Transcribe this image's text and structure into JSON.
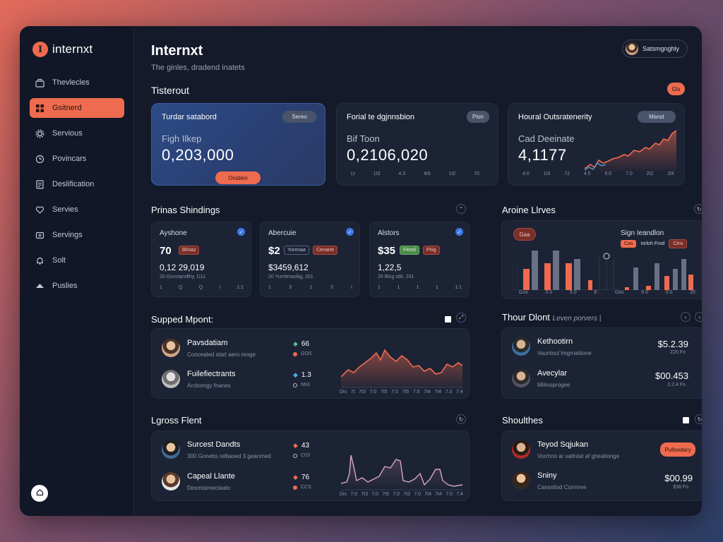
{
  "app": {
    "logo_mark": "I",
    "logo_text": "internxt",
    "title": "Internxt",
    "subtitle": "The ginles, dradend inatets",
    "user_name": "Satsmgnghly"
  },
  "sidebar": {
    "items": [
      {
        "label": "Thevlecles",
        "icon": "briefcase-icon",
        "active": false
      },
      {
        "label": "Gsitnerd",
        "icon": "grid-icon",
        "active": true
      },
      {
        "label": "Servious",
        "icon": "gear-icon",
        "active": false
      },
      {
        "label": "Povincars",
        "icon": "clock-icon",
        "active": false
      },
      {
        "label": "Deslification",
        "icon": "document-icon",
        "active": false
      },
      {
        "label": "Servies",
        "icon": "heart-icon",
        "active": false
      },
      {
        "label": "Servings",
        "icon": "box-icon",
        "active": false
      },
      {
        "label": "Solt",
        "icon": "bell-icon",
        "active": false
      },
      {
        "label": "Puslies",
        "icon": "cloud-icon",
        "active": false
      }
    ]
  },
  "overview": {
    "title": "Tisterout",
    "badge": "Gls",
    "cards": [
      {
        "label": "Turdar satabord",
        "chip": "Sereo",
        "sub": "Figh Ilkep",
        "value": "0,203,000",
        "button": "Onidien"
      },
      {
        "label": "Forial te dgjnnsbion",
        "chip": "Pion",
        "sub": "Bif Toon",
        "value": "0,2106,020",
        "axis": [
          "Lt",
          "1t3",
          "4.3",
          "4t5",
          "1t2",
          "70"
        ]
      },
      {
        "label": "Houral Outsratenerity",
        "chip": "Manst",
        "sub": "Cad Deeinate",
        "value": "4,1177",
        "axis": [
          "4:0",
          "1t3",
          "72",
          "4.5",
          "6.0",
          "7.0",
          "2t2",
          "2t4"
        ]
      }
    ]
  },
  "standings": {
    "title": "Prinas Shindings",
    "cards": [
      {
        "label": "Ayshone",
        "value": "70",
        "badges": [
          {
            "text": "Blmaz",
            "kind": "red"
          }
        ],
        "number": "0,12 29,019",
        "note": "20   Gonstandthy,  D11",
        "axis": [
          "1",
          "Q",
          "Q",
          "I",
          "1:1"
        ]
      },
      {
        "label": "Abercuie",
        "value": "$2",
        "badges": [
          {
            "text": "Yorenaa",
            "kind": "outline"
          },
          {
            "text": "Cenaret",
            "kind": "red"
          }
        ],
        "number": "$3459,612",
        "note": "20   Yurrtenasliig,  201",
        "axis": [
          "1",
          "3",
          "1",
          "3",
          "I"
        ]
      },
      {
        "label": "Alstors",
        "value": "$35",
        "badges": [
          {
            "text": "Fitred",
            "kind": "green"
          },
          {
            "text": "Fhig",
            "kind": "red"
          }
        ],
        "number": "1,22,5",
        "note": "26   Blsg stlit,  201",
        "axis": [
          "1",
          "1",
          "1",
          "1",
          "1:1"
        ]
      }
    ]
  },
  "active_lines": {
    "title": "Aroine Llrves",
    "pill": "Gaa",
    "legend_title": "Sign Ieandlon",
    "legend_items": [
      "Cas",
      "Iorloh Frod",
      "Cins"
    ],
    "axis": [
      "Gus",
      "0.0",
      "5.0",
      "E",
      "Gas",
      "6.0",
      "0.0",
      "26"
    ]
  },
  "supported": {
    "title": "Supped Mpont:",
    "people": [
      {
        "name": "Pavsdatiam",
        "desc": "Concealed start aero reoge",
        "stat": "66",
        "stat_sub": "GOS"
      },
      {
        "name": "Fuilefiectrants",
        "desc": "Arckomgy fnanes",
        "stat": "1.3",
        "stat_sub": "N93"
      }
    ],
    "axis": [
      "Dis",
      "7t",
      "7t3",
      "7:0",
      "7t5",
      "7:0",
      "7t5",
      "7:0",
      "7t4",
      "7t4",
      "7.0",
      "7:4"
    ]
  },
  "thour": {
    "title": "Thour Dlont",
    "subtitle": "Leven porvers |",
    "people": [
      {
        "name": "Kethootirn",
        "desc": "Vauntoul lmgrnaitione",
        "amount": "$5.2.39",
        "amount_sub": "Z20 Fo"
      },
      {
        "name": "Avecylar",
        "desc": "Milmoprogee",
        "amount": "$00.453",
        "amount_sub": "2.2.4 Fo"
      }
    ]
  },
  "lgross": {
    "title": "Lgross Flent",
    "people": [
      {
        "name": "Surcest Dandts",
        "desc": "300 Gonebs relbased 3 geanmed",
        "stat": "43",
        "stat_sub": "C03"
      },
      {
        "name": "Capeal Llante",
        "desc": "Desmistmeclaalo",
        "stat": "76",
        "stat_sub": "CCS"
      }
    ],
    "axis": [
      "Dis",
      "7:0",
      "7t3",
      "7:0",
      "7t5",
      "7:0",
      "7t3",
      "7:0",
      "7t4",
      "7t4",
      "7:0",
      "7:4"
    ]
  },
  "shoulthes": {
    "title": "Shoulthes",
    "people": [
      {
        "name": "Teyod Sqjukan",
        "desc": "Vorrhno ar satlntat af ghealtonge",
        "button": "Pullsedary"
      },
      {
        "name": "Sniny",
        "desc": "Cansstiod Corrnnre",
        "amount": "$00.99",
        "amount_sub": "$38 Fo"
      }
    ]
  },
  "colors": {
    "accent": "#ef6b4f",
    "background": "#141a2a",
    "card": "#1c2335",
    "blue_card": "#2c4b86",
    "check_blue": "#3e79e6",
    "green_badge": "#4c8a4a"
  }
}
